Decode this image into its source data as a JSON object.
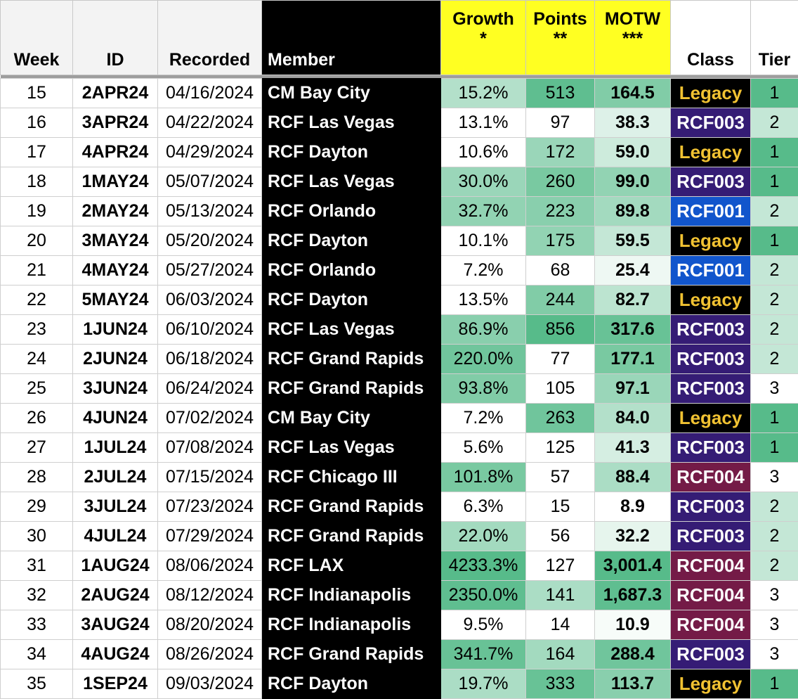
{
  "headers": {
    "week": "Week",
    "id": "ID",
    "recorded": "Recorded",
    "member": "Member",
    "growth": "Growth",
    "growth_note": "*",
    "points": "Points",
    "points_note": "**",
    "motw": "MOTW",
    "motw_note": "***",
    "class": "Class",
    "tier": "Tier"
  },
  "class_styles": {
    "Legacy": {
      "bg": "#000000",
      "fg": "#f1c232"
    },
    "RCF001": {
      "bg": "#1155cc",
      "fg": "#ffffff"
    },
    "RCF003": {
      "bg": "#351c75",
      "fg": "#ffffff"
    },
    "RCF004": {
      "bg": "#741b47",
      "fg": "#ffffff"
    }
  },
  "heat_colors": {
    "low": "#ffffff",
    "high": "#57bb8a"
  },
  "rows": [
    {
      "week": "15",
      "id": "2APR24",
      "recorded": "04/16/2024",
      "member": "CM Bay City",
      "growth": "15.2%",
      "points": "513",
      "motw": "164.5",
      "class": "Legacy",
      "tier": "1"
    },
    {
      "week": "16",
      "id": "3APR24",
      "recorded": "04/22/2024",
      "member": "RCF Las Vegas",
      "growth": "13.1%",
      "points": "97",
      "motw": "38.3",
      "class": "RCF003",
      "tier": "2"
    },
    {
      "week": "17",
      "id": "4APR24",
      "recorded": "04/29/2024",
      "member": "RCF Dayton",
      "growth": "10.6%",
      "points": "172",
      "motw": "59.0",
      "class": "Legacy",
      "tier": "1"
    },
    {
      "week": "18",
      "id": "1MAY24",
      "recorded": "05/07/2024",
      "member": "RCF Las Vegas",
      "growth": "30.0%",
      "points": "260",
      "motw": "99.0",
      "class": "RCF003",
      "tier": "1"
    },
    {
      "week": "19",
      "id": "2MAY24",
      "recorded": "05/13/2024",
      "member": "RCF Orlando",
      "growth": "32.7%",
      "points": "223",
      "motw": "89.8",
      "class": "RCF001",
      "tier": "2"
    },
    {
      "week": "20",
      "id": "3MAY24",
      "recorded": "05/20/2024",
      "member": "RCF Dayton",
      "growth": "10.1%",
      "points": "175",
      "motw": "59.5",
      "class": "Legacy",
      "tier": "1"
    },
    {
      "week": "21",
      "id": "4MAY24",
      "recorded": "05/27/2024",
      "member": "RCF Orlando",
      "growth": "7.2%",
      "points": "68",
      "motw": "25.4",
      "class": "RCF001",
      "tier": "2"
    },
    {
      "week": "22",
      "id": "5MAY24",
      "recorded": "06/03/2024",
      "member": "RCF Dayton",
      "growth": "13.5%",
      "points": "244",
      "motw": "82.7",
      "class": "Legacy",
      "tier": "2"
    },
    {
      "week": "23",
      "id": "1JUN24",
      "recorded": "06/10/2024",
      "member": "RCF Las Vegas",
      "growth": "86.9%",
      "points": "856",
      "motw": "317.6",
      "class": "RCF003",
      "tier": "2"
    },
    {
      "week": "24",
      "id": "2JUN24",
      "recorded": "06/18/2024",
      "member": "RCF Grand Rapids",
      "growth": "220.0%",
      "points": "77",
      "motw": "177.1",
      "class": "RCF003",
      "tier": "2"
    },
    {
      "week": "25",
      "id": "3JUN24",
      "recorded": "06/24/2024",
      "member": "RCF Grand Rapids",
      "growth": "93.8%",
      "points": "105",
      "motw": "97.1",
      "class": "RCF003",
      "tier": "3"
    },
    {
      "week": "26",
      "id": "4JUN24",
      "recorded": "07/02/2024",
      "member": "CM Bay City",
      "growth": "7.2%",
      "points": "263",
      "motw": "84.0",
      "class": "Legacy",
      "tier": "1"
    },
    {
      "week": "27",
      "id": "1JUL24",
      "recorded": "07/08/2024",
      "member": "RCF Las Vegas",
      "growth": "5.6%",
      "points": "125",
      "motw": "41.3",
      "class": "RCF003",
      "tier": "1"
    },
    {
      "week": "28",
      "id": "2JUL24",
      "recorded": "07/15/2024",
      "member": "RCF Chicago III",
      "growth": "101.8%",
      "points": "57",
      "motw": "88.4",
      "class": "RCF004",
      "tier": "3"
    },
    {
      "week": "29",
      "id": "3JUL24",
      "recorded": "07/23/2024",
      "member": "RCF Grand Rapids",
      "growth": "6.3%",
      "points": "15",
      "motw": "8.9",
      "class": "RCF003",
      "tier": "2"
    },
    {
      "week": "30",
      "id": "4JUL24",
      "recorded": "07/29/2024",
      "member": "RCF Grand Rapids",
      "growth": "22.0%",
      "points": "56",
      "motw": "32.2",
      "class": "RCF003",
      "tier": "2"
    },
    {
      "week": "31",
      "id": "1AUG24",
      "recorded": "08/06/2024",
      "member": "RCF LAX",
      "growth": "4233.3%",
      "points": "127",
      "motw": "3,001.4",
      "class": "RCF004",
      "tier": "2"
    },
    {
      "week": "32",
      "id": "2AUG24",
      "recorded": "08/12/2024",
      "member": "RCF Indianapolis",
      "growth": "2350.0%",
      "points": "141",
      "motw": "1,687.3",
      "class": "RCF004",
      "tier": "3"
    },
    {
      "week": "33",
      "id": "3AUG24",
      "recorded": "08/20/2024",
      "member": "RCF Indianapolis",
      "growth": "9.5%",
      "points": "14",
      "motw": "10.9",
      "class": "RCF004",
      "tier": "3"
    },
    {
      "week": "34",
      "id": "4AUG24",
      "recorded": "08/26/2024",
      "member": "RCF Grand Rapids",
      "growth": "341.7%",
      "points": "164",
      "motw": "288.4",
      "class": "RCF003",
      "tier": "3"
    },
    {
      "week": "35",
      "id": "1SEP24",
      "recorded": "09/03/2024",
      "member": "RCF Dayton",
      "growth": "19.7%",
      "points": "333",
      "motw": "113.7",
      "class": "Legacy",
      "tier": "1"
    }
  ]
}
